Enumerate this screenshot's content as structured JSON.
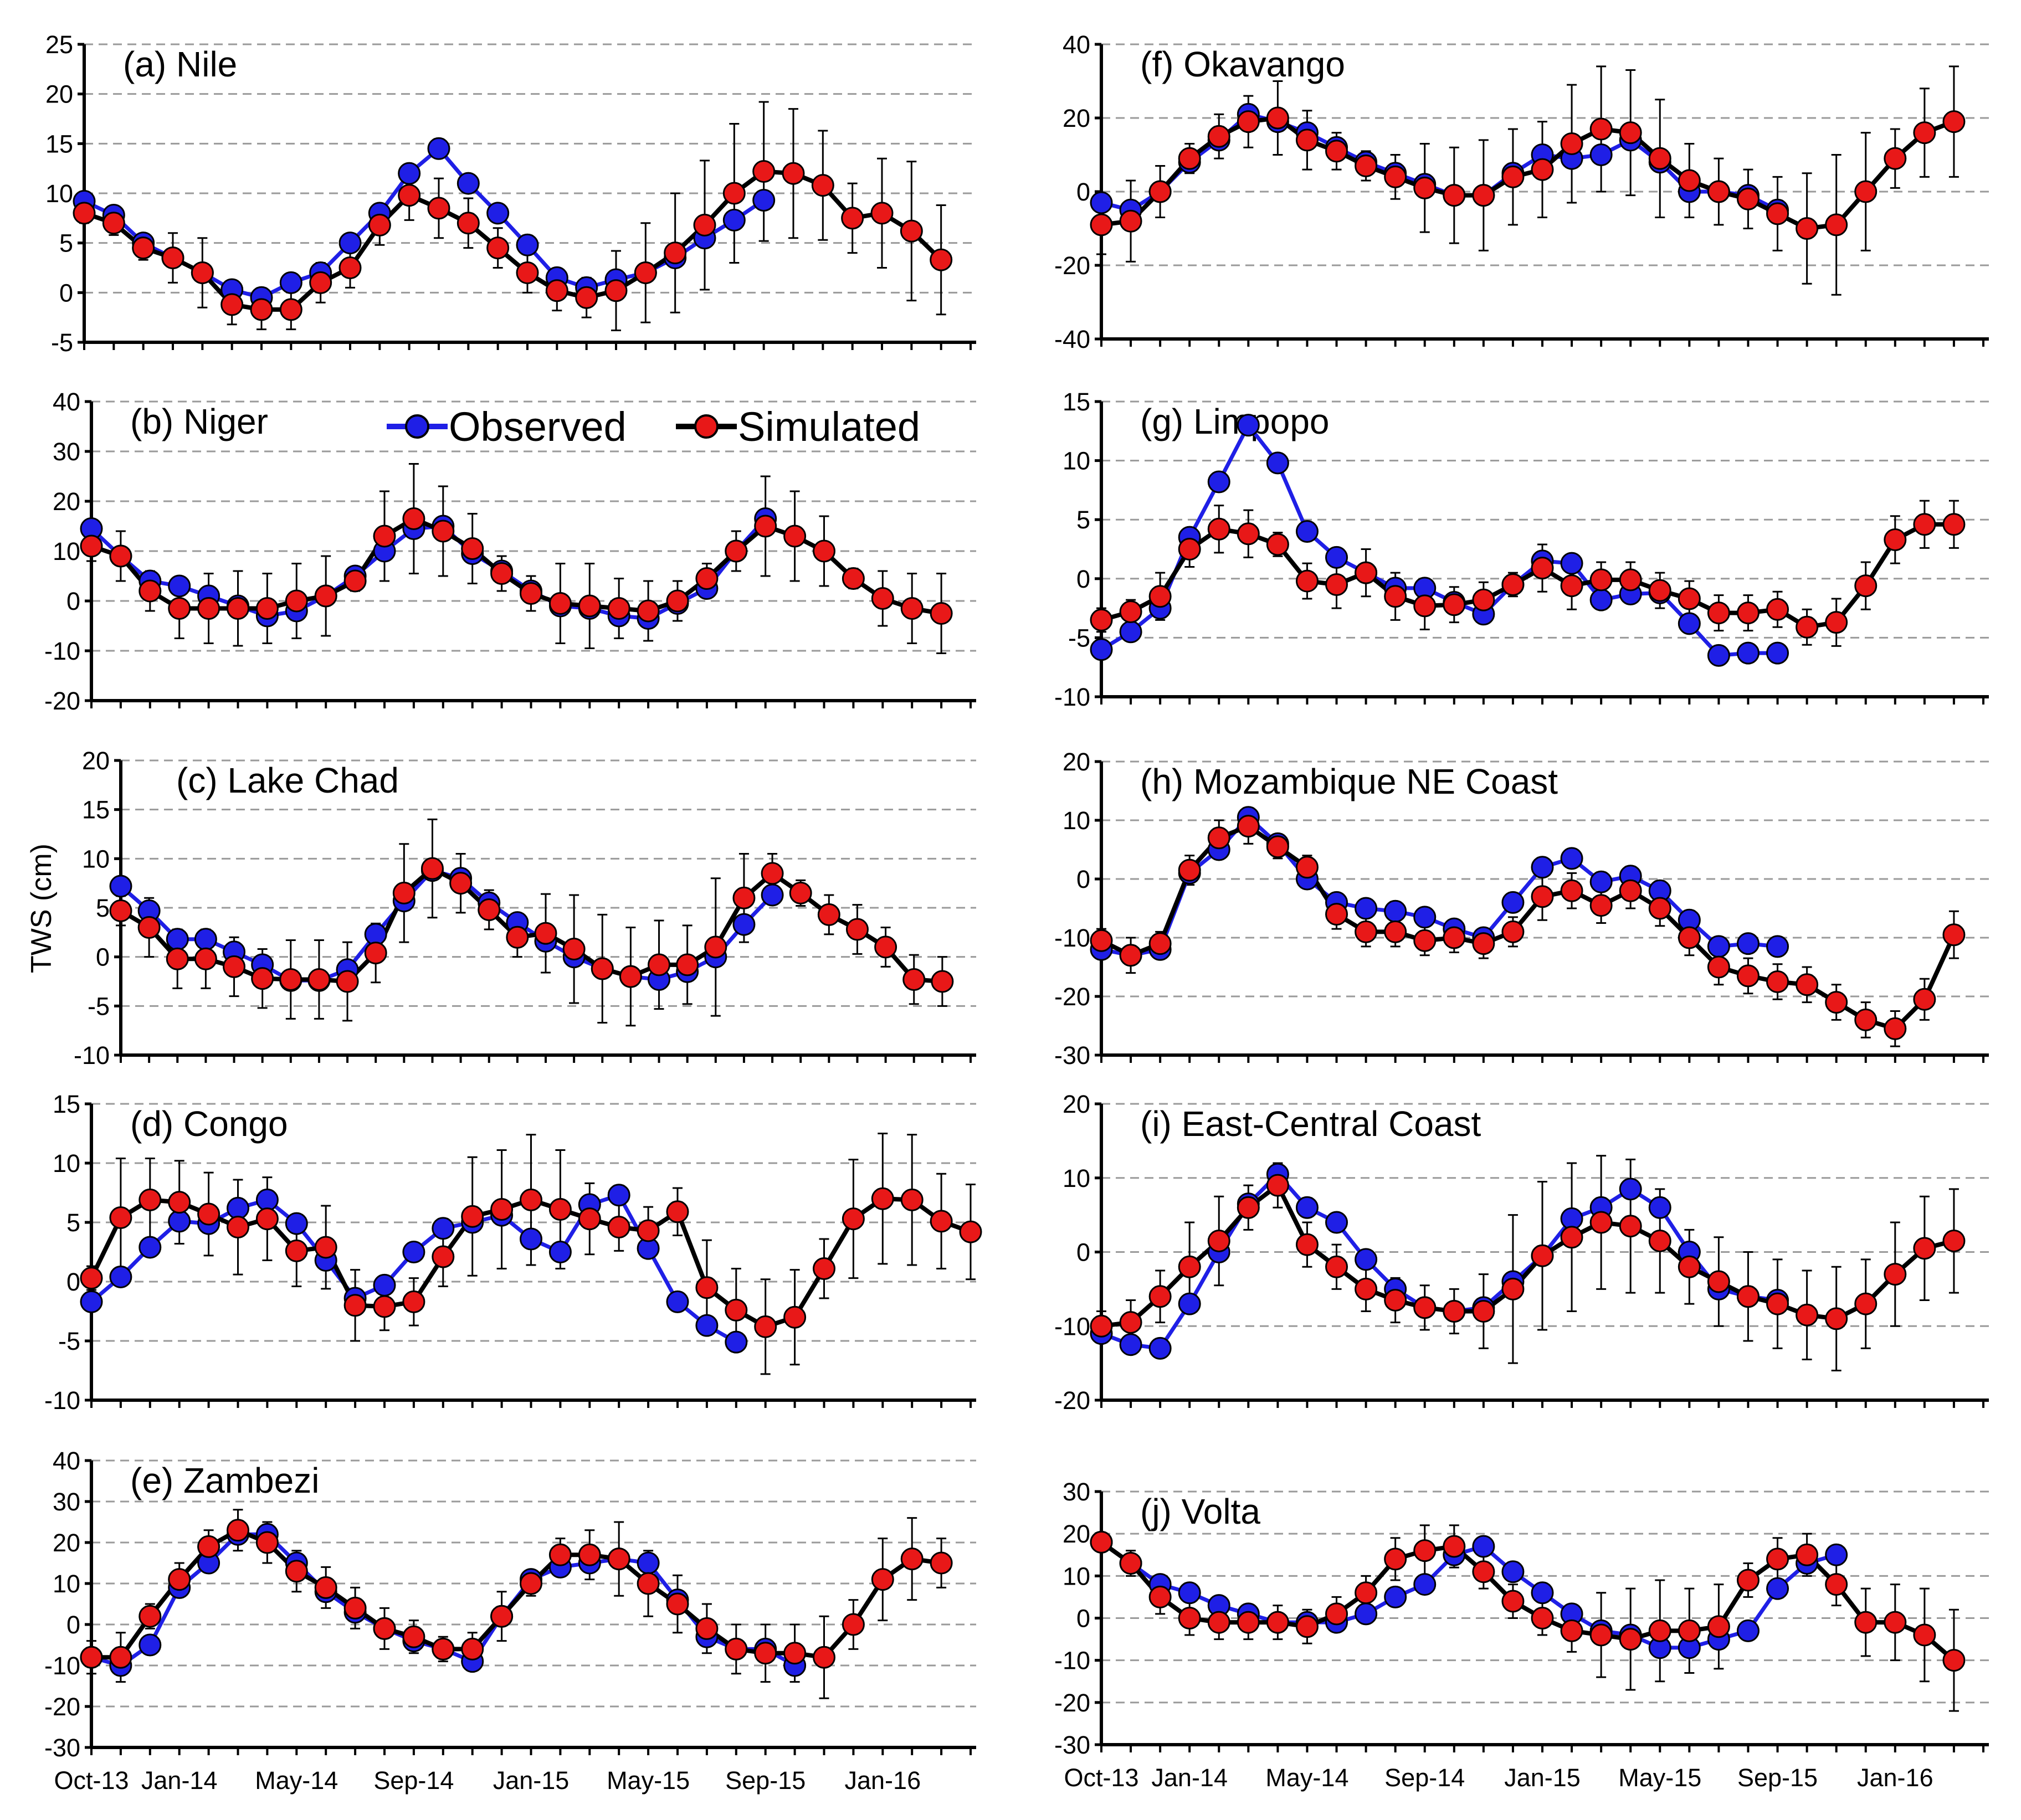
{
  "chart_data": {
    "type": "line",
    "ylabel": "TWS (cm)",
    "x_tick_labels": [
      "Oct-13",
      "Jan-14",
      "May-14",
      "Sep-14",
      "Jan-15",
      "May-15",
      "Sep-15",
      "Jan-16"
    ],
    "legend": {
      "observed": "Observed",
      "simulated": "Simulated"
    },
    "colors": {
      "observed": "#1f1fe6",
      "simulated": "#e81818",
      "line_sim": "#000000",
      "grid": "#9a9a9a"
    },
    "panels": [
      {
        "id": "a",
        "title": "(a) Nile",
        "ylim": [
          -5,
          25
        ],
        "yticks": [
          -5,
          0,
          5,
          10,
          15,
          20,
          25
        ],
        "observed": [
          9.2,
          7.8,
          5,
          3.5,
          2,
          0.3,
          -0.5,
          1,
          2,
          5,
          8,
          12,
          14.5,
          11,
          8,
          4.8,
          1.5,
          0.5,
          1.3,
          2,
          3.5,
          5.5,
          7.3,
          9.3
        ],
        "simulated": [
          8,
          7,
          4.5,
          3.5,
          2,
          -1.2,
          -1.7,
          -1.7,
          1,
          2.5,
          6.8,
          9.8,
          8.5,
          7,
          4.5,
          2,
          0.2,
          -0.5,
          0.2,
          2,
          4,
          6.8,
          10,
          12.2,
          12,
          10.8,
          7.5,
          8,
          6.2,
          3.3
        ],
        "error": [
          1,
          1.2,
          1.2,
          2.5,
          3.5,
          2,
          2,
          2,
          2,
          2,
          2,
          2.5,
          3,
          2.5,
          2,
          2,
          2,
          2,
          4,
          5,
          6,
          6.5,
          7,
          7,
          6.5,
          5.5,
          3.5,
          5.5,
          7,
          5.5
        ]
      },
      {
        "id": "b",
        "title": "(b) Niger",
        "ylim": [
          -20,
          40
        ],
        "yticks": [
          -20,
          -10,
          0,
          10,
          20,
          30,
          40
        ],
        "observed": [
          14.5,
          9,
          4,
          3,
          1,
          -1,
          -3,
          -2,
          1,
          5,
          10,
          14.5,
          15,
          9.5,
          6,
          2,
          -1,
          -1.5,
          -3,
          -3.5,
          -0.5,
          2.5,
          10,
          16.5
        ],
        "simulated": [
          11,
          9,
          2,
          -1.5,
          -1.5,
          -1.5,
          -1.5,
          0,
          1,
          4,
          13,
          16.5,
          14,
          10.5,
          5.5,
          1.5,
          -0.5,
          -1,
          -1.5,
          -2,
          0,
          4.5,
          10,
          15,
          13,
          10,
          4.5,
          0.5,
          -1.5,
          -2.5
        ],
        "error": [
          3,
          5,
          4,
          6,
          7,
          7.5,
          7,
          7.5,
          8,
          2,
          9,
          11,
          9,
          7,
          3.5,
          3.5,
          8,
          8.5,
          6,
          6,
          4,
          3,
          4,
          10,
          9,
          7,
          2,
          5.5,
          7,
          8
        ]
      },
      {
        "id": "c",
        "title": "(c) Lake Chad",
        "ylim": [
          -10,
          20
        ],
        "yticks": [
          -10,
          -5,
          0,
          5,
          10,
          15,
          20
        ],
        "observed": [
          7.2,
          4.7,
          1.8,
          1.8,
          0.5,
          -0.8,
          -2.4,
          -2.4,
          -1.3,
          2.3,
          5.7,
          8.8,
          8,
          5.5,
          3.5,
          1.6,
          0,
          -1.2,
          -2,
          -2.3,
          -1.5,
          0,
          3.3,
          6.3
        ],
        "simulated": [
          4.7,
          3,
          -0.2,
          -0.2,
          -1,
          -2.2,
          -2.3,
          -2.3,
          -2.5,
          0.4,
          6.5,
          9,
          7.5,
          4.8,
          2,
          2.4,
          0.8,
          -1.2,
          -2,
          -0.8,
          -0.8,
          1,
          6,
          8.5,
          6.5,
          4.3,
          2.8,
          1,
          -2.3,
          -2.5
        ],
        "error": [
          1.5,
          3,
          3,
          3,
          3,
          3,
          4,
          4,
          4,
          3,
          5,
          5,
          3,
          2,
          2,
          4,
          5.5,
          5.5,
          5,
          4.5,
          4,
          7,
          4.5,
          2,
          1.3,
          2,
          2.5,
          2,
          2.5,
          2.5
        ]
      },
      {
        "id": "d",
        "title": "(d) Congo",
        "ylim": [
          -10,
          15
        ],
        "yticks": [
          -10,
          -5,
          0,
          5,
          10,
          15
        ],
        "observed": [
          -1.7,
          0.4,
          2.9,
          5.1,
          4.9,
          6.2,
          6.9,
          4.9,
          1.8,
          -1.4,
          -0.3,
          2.5,
          4.5,
          5,
          5.6,
          3.6,
          2.5,
          6.5,
          7.3,
          2.8,
          -1.7,
          -3.7,
          -5.1
        ],
        "simulated": [
          0.3,
          5.4,
          6.9,
          6.7,
          5.7,
          4.6,
          5.3,
          2.6,
          2.9,
          -2,
          -2.1,
          -1.7,
          2.1,
          5.5,
          6.1,
          6.9,
          6.1,
          5.3,
          4.6,
          4.3,
          5.9,
          -0.5,
          -2.4,
          -3.8,
          -3,
          1.1,
          5.3,
          7,
          6.9,
          5.1,
          4.2
        ],
        "error": [
          1,
          5,
          3.5,
          3.5,
          3.5,
          4,
          3.5,
          3,
          3.5,
          3,
          2,
          2,
          2.5,
          5,
          5,
          5.5,
          5,
          3,
          2,
          2,
          2,
          4,
          3.5,
          4,
          4,
          2.5,
          5,
          5.5,
          5.5,
          4,
          4
        ]
      },
      {
        "id": "e",
        "title": "(e) Zambezi",
        "ylim": [
          -30,
          40
        ],
        "yticks": [
          -30,
          -20,
          -10,
          0,
          10,
          20,
          30,
          40
        ],
        "observed": [
          -8,
          -10,
          -5,
          9,
          15,
          22,
          22,
          15,
          8,
          3,
          -1,
          -4,
          -6,
          -9,
          2,
          11,
          14,
          15,
          16,
          15,
          6,
          -3,
          -6,
          -6,
          -10
        ],
        "simulated": [
          -8,
          -8,
          2,
          11,
          19,
          23,
          20,
          13,
          9,
          4,
          -1,
          -3,
          -6,
          -6,
          2,
          10,
          17,
          17,
          16,
          10,
          5,
          -1,
          -6,
          -7,
          -7,
          -8,
          0,
          11,
          16,
          15
        ],
        "error": [
          4,
          6,
          3,
          4,
          4,
          5,
          5,
          5,
          5,
          5,
          5,
          4,
          3,
          4,
          6,
          3,
          4,
          6,
          9,
          8,
          7,
          6,
          6,
          7,
          7,
          10,
          6,
          10,
          10,
          6
        ]
      },
      {
        "id": "f",
        "title": "(f) Okavango",
        "ylim": [
          -40,
          40
        ],
        "yticks": [
          -40,
          -20,
          0,
          20,
          40
        ],
        "observed": [
          -3,
          -5,
          0,
          8,
          14,
          21,
          19,
          16,
          12,
          8,
          5,
          2,
          -1,
          -1,
          5,
          10,
          9,
          10,
          14,
          8,
          0,
          0,
          -1,
          -5
        ],
        "simulated": [
          -9,
          -8,
          0,
          9,
          15,
          19,
          20,
          14,
          11,
          7,
          4,
          1,
          -1,
          -1,
          4,
          6,
          13,
          17,
          16,
          9,
          3,
          0,
          -2,
          -6,
          -10,
          -9,
          0,
          9,
          16,
          19
        ],
        "error": [
          8,
          11,
          7,
          4,
          6,
          7,
          10,
          8,
          5,
          4,
          6,
          12,
          13,
          15,
          13,
          13,
          16,
          17,
          17,
          16,
          10,
          9,
          8,
          10,
          15,
          19,
          16,
          8,
          12,
          15
        ]
      },
      {
        "id": "g",
        "title": "(g) Limpopo",
        "ylim": [
          -10,
          15
        ],
        "yticks": [
          -10,
          -5,
          0,
          5,
          10,
          15
        ],
        "observed": [
          -6,
          -4.5,
          -2.5,
          3.5,
          8.2,
          13,
          9.8,
          4,
          1.8,
          0.5,
          -0.8,
          -0.8,
          -2,
          -3,
          -0.5,
          1.5,
          1.3,
          -1.8,
          -1.3,
          -1.2,
          -3.8,
          -6.5,
          -6.3,
          -6.3
        ],
        "simulated": [
          -3.5,
          -2.8,
          -1.5,
          2.5,
          4.2,
          3.8,
          2.9,
          -0.2,
          -0.5,
          0.5,
          -1.5,
          -2.3,
          -2.2,
          -1.8,
          -0.5,
          0.9,
          -0.6,
          -0.1,
          -0.1,
          -1,
          -1.7,
          -2.9,
          -2.9,
          -2.6,
          -4.1,
          -3.7,
          -0.6,
          3.3,
          4.6,
          4.6
        ],
        "error": [
          1,
          1,
          2,
          1.5,
          2,
          2,
          1,
          1.5,
          2,
          2,
          2,
          2,
          1.5,
          1.5,
          1,
          2,
          2,
          1.5,
          1.5,
          1.5,
          1.5,
          1.5,
          1.5,
          1.5,
          1.5,
          2,
          2,
          2,
          2,
          2
        ]
      },
      {
        "id": "h",
        "title": "(h) Mozambique NE Coast",
        "ylim": [
          -30,
          20
        ],
        "yticks": [
          -30,
          -20,
          -10,
          0,
          10,
          20
        ],
        "observed": [
          -12,
          -13,
          -12,
          1,
          5,
          10.5,
          6,
          0,
          -4,
          -5,
          -5.5,
          -6.5,
          -8.5,
          -10,
          -4,
          2,
          3.5,
          -0.5,
          0.5,
          -2,
          -7,
          -11.5,
          -11,
          -11.5
        ],
        "simulated": [
          -10.5,
          -13,
          -11,
          1.5,
          7,
          9,
          5.5,
          2,
          -6,
          -9,
          -9,
          -10.5,
          -10,
          -11,
          -9,
          -3,
          -2,
          -4.5,
          -2,
          -5,
          -10,
          -15,
          -16.5,
          -17.5,
          -18,
          -21,
          -24,
          -25.5,
          -20.5,
          -9.5
        ],
        "error": [
          2,
          3,
          2,
          2.5,
          3,
          3,
          2,
          2,
          2.5,
          2.5,
          2.5,
          2.5,
          2.5,
          2.5,
          2.5,
          4,
          3,
          3,
          3,
          3,
          3,
          3,
          3,
          3,
          3,
          3,
          3,
          3,
          3.5,
          4
        ]
      },
      {
        "id": "i",
        "title": "(i) East-Central Coast",
        "ylim": [
          -20,
          20
        ],
        "yticks": [
          -20,
          -10,
          0,
          10,
          20
        ],
        "observed": [
          -11,
          -12.5,
          -13,
          -7,
          0,
          6.5,
          10.5,
          6,
          4,
          -1,
          -5,
          -7.5,
          -8,
          -7.5,
          -4,
          -0.5,
          4.5,
          6,
          8.5,
          6,
          0,
          -5,
          -6,
          -6.5
        ],
        "simulated": [
          -10,
          -9.5,
          -6,
          -2,
          1.5,
          6,
          9,
          1,
          -2,
          -5,
          -6.5,
          -7.5,
          -8,
          -8,
          -5,
          -0.5,
          2,
          4,
          3.5,
          1.5,
          -2,
          -4,
          -6,
          -7,
          -8.5,
          -9,
          -7,
          -3,
          0.5,
          1.5
        ],
        "error": [
          2,
          3,
          3.5,
          6,
          6,
          3,
          3,
          3,
          3,
          3,
          3,
          3,
          3,
          5,
          10,
          10,
          10,
          9,
          9,
          7,
          5,
          6,
          6,
          6,
          6,
          7,
          6,
          7,
          7,
          7
        ]
      },
      {
        "id": "j",
        "title": "(j) Volta",
        "ylim": [
          -30,
          30
        ],
        "yticks": [
          -30,
          -20,
          -10,
          0,
          10,
          20,
          30
        ],
        "observed": [
          18,
          13,
          8,
          6,
          3,
          1,
          -1,
          -1,
          -1,
          1,
          5,
          8,
          15,
          17,
          11,
          6,
          1,
          -3,
          -4,
          -7,
          -7,
          -5,
          -3,
          7,
          13,
          15
        ],
        "simulated": [
          18,
          13,
          5,
          0,
          -1,
          -1,
          -1,
          -2,
          1,
          6,
          14,
          16,
          17,
          11,
          4,
          0,
          -3,
          -4,
          -5,
          -3,
          -3,
          -2,
          9,
          14,
          15,
          8,
          -1,
          -1,
          -4,
          -10
        ],
        "error": [
          2,
          3,
          4,
          4,
          4,
          4,
          4,
          4,
          4,
          4,
          5,
          6,
          5,
          4,
          4,
          4,
          5,
          10,
          12,
          12,
          10,
          10,
          4,
          5,
          5,
          5,
          8,
          9,
          11,
          12
        ]
      }
    ]
  }
}
